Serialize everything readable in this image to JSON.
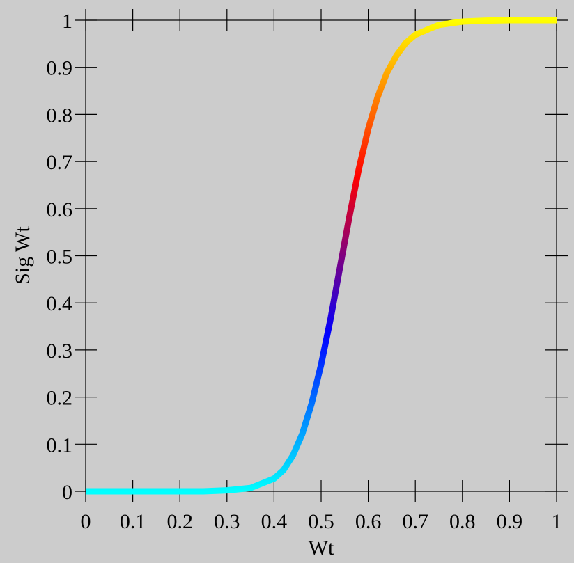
{
  "chart_data": {
    "type": "line",
    "xlabel": "Wt",
    "ylabel": "Sig Wt",
    "xlim": [
      0,
      1
    ],
    "ylim": [
      0,
      1
    ],
    "x_ticks": [
      "0",
      "0.1",
      "0.2",
      "0.3",
      "0.4",
      "0.5",
      "0.6",
      "0.7",
      "0.8",
      "0.9",
      "1"
    ],
    "y_ticks": [
      "0",
      "0.1",
      "0.2",
      "0.3",
      "0.4",
      "0.5",
      "0.6",
      "0.7",
      "0.8",
      "0.9",
      "1"
    ],
    "grid": false,
    "background_color": "#cccccc",
    "line_color_gradient": [
      "#00ffff",
      "#0000ff",
      "#ff0000",
      "#ffff00"
    ],
    "series": [
      {
        "x": [
          0,
          0.05,
          0.1,
          0.15,
          0.2,
          0.25,
          0.3,
          0.35,
          0.4,
          0.42,
          0.44,
          0.46,
          0.48,
          0.5,
          0.52,
          0.54,
          0.56,
          0.58,
          0.6,
          0.62,
          0.64,
          0.66,
          0.68,
          0.7,
          0.75,
          0.8,
          0.85,
          0.9,
          0.95,
          1.0
        ],
        "values": [
          0.0,
          0.0,
          0.0,
          0.0,
          0.0,
          0.0,
          0.002,
          0.007,
          0.027,
          0.045,
          0.076,
          0.122,
          0.187,
          0.269,
          0.366,
          0.475,
          0.583,
          0.684,
          0.769,
          0.837,
          0.889,
          0.925,
          0.952,
          0.969,
          0.99,
          0.997,
          0.999,
          1.0,
          1.0,
          1.0
        ]
      }
    ]
  }
}
